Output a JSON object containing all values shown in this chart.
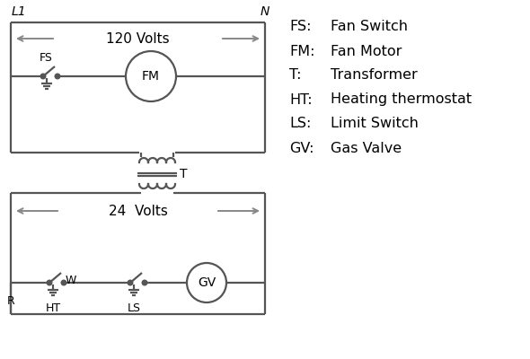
{
  "bg_color": "#ffffff",
  "line_color": "#555555",
  "arrow_color": "#888888",
  "text_color": "#000000",
  "line_width": 1.6,
  "legend_items": [
    [
      "FS:",
      "Fan Switch"
    ],
    [
      "FM:",
      "Fan Motor"
    ],
    [
      "T:",
      "Transformer"
    ],
    [
      "HT:",
      "Heating thermostat"
    ],
    [
      "LS:",
      "Limit Switch"
    ],
    [
      "GV:",
      "Gas Valve"
    ]
  ],
  "title_L1": "L1",
  "title_N": "N",
  "label_120": "120 Volts",
  "label_24": "24  Volts",
  "label_T": "T",
  "label_FS": "FS",
  "label_FM": "FM",
  "label_GV": "GV",
  "label_R": "R",
  "label_W": "W",
  "label_HT": "HT",
  "label_LS": "LS"
}
